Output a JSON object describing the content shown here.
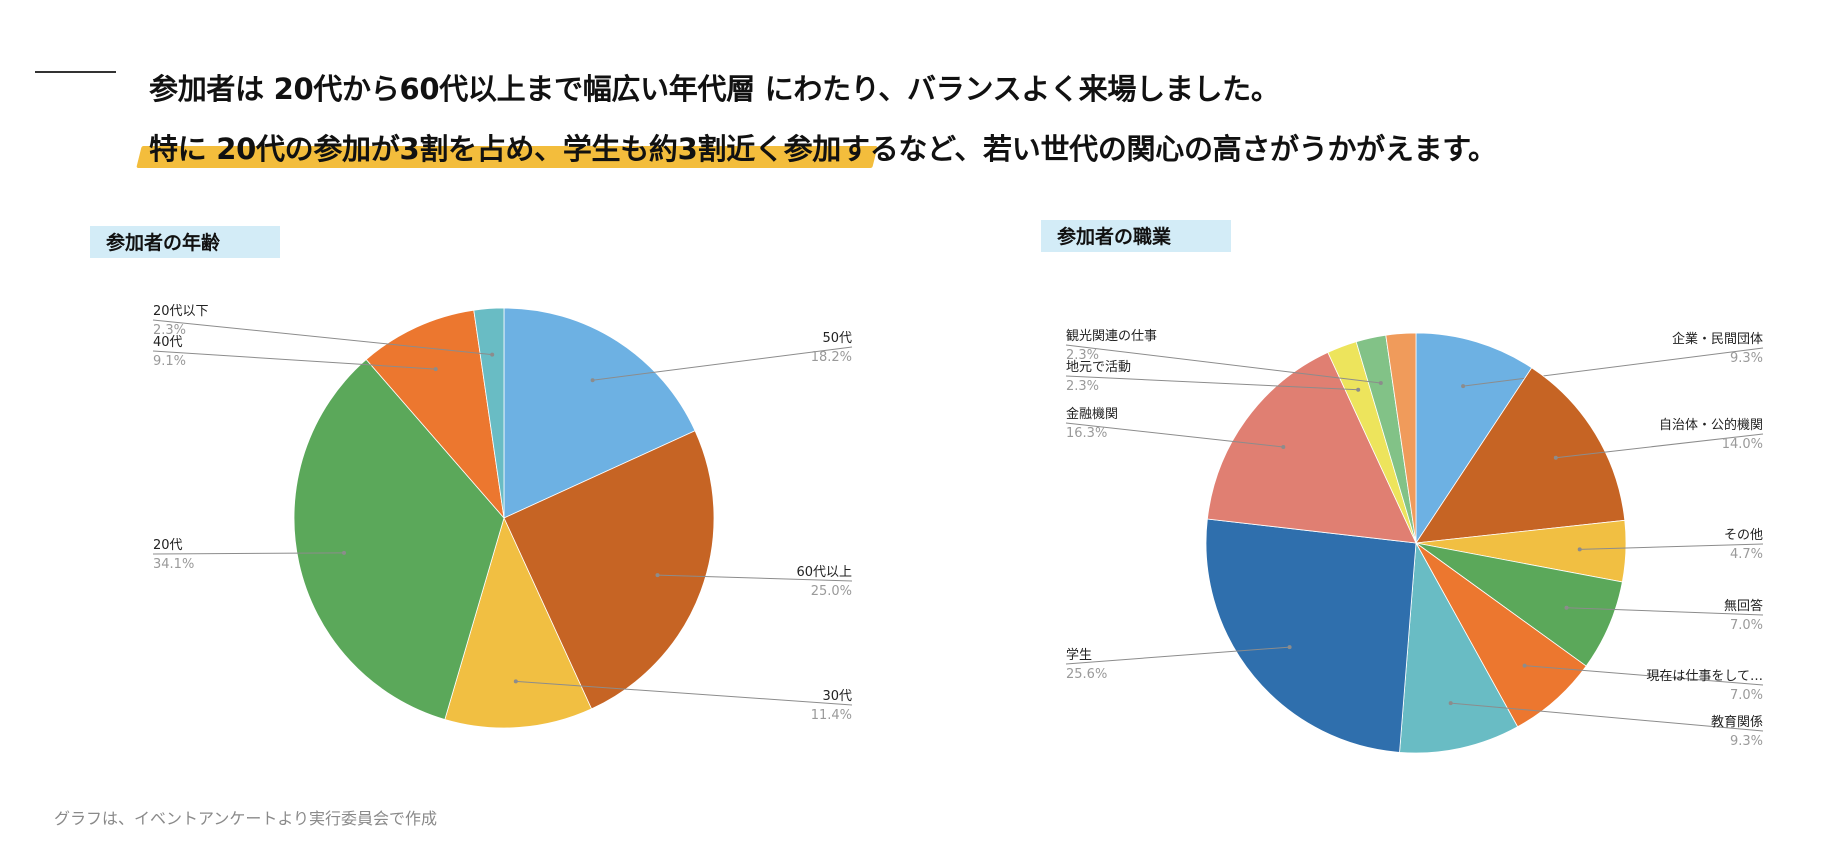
{
  "headline": {
    "line1": "参加者は 20代から60代以上まで幅広い年代層 にわたり、バランスよく来場しました。",
    "line2": "特に 20代の参加が3割を占め、学生も約3割近く参加するなど、若い世代の関心の高さがうかがえます。"
  },
  "footnote": "グラフは、イベントアンケートより実行委員会で作成",
  "chart_data": [
    {
      "type": "pie",
      "title": "参加者の年齢",
      "legend_position": "outside labels",
      "slices": [
        {
          "label": "50代",
          "value": 18.2,
          "pct_label": "18.2%",
          "color": "#6db1e3"
        },
        {
          "label": "60代以上",
          "value": 25.0,
          "pct_label": "25.0%",
          "color": "#c66424"
        },
        {
          "label": "30代",
          "value": 11.4,
          "pct_label": "11.4%",
          "color": "#f1bf42"
        },
        {
          "label": "20代",
          "value": 34.1,
          "pct_label": "34.1%",
          "color": "#5ba85a"
        },
        {
          "label": "40代",
          "value": 9.1,
          "pct_label": "9.1%",
          "color": "#ec772f"
        },
        {
          "label": "20代以下",
          "value": 2.3,
          "pct_label": "2.3%",
          "color": "#69bcc4"
        }
      ]
    },
    {
      "type": "pie",
      "title": "参加者の職業",
      "legend_position": "outside labels",
      "slices": [
        {
          "label": "企業・民間団体",
          "value": 9.3,
          "pct_label": "9.3%",
          "color": "#6db1e3"
        },
        {
          "label": "自治体・公的機関",
          "value": 14.0,
          "pct_label": "14.0%",
          "color": "#c66424"
        },
        {
          "label": "その他",
          "value": 4.7,
          "pct_label": "4.7%",
          "color": "#f1bf42"
        },
        {
          "label": "無回答",
          "value": 7.0,
          "pct_label": "7.0%",
          "color": "#5ba85a"
        },
        {
          "label": "現在は仕事をして…",
          "value": 7.0,
          "pct_label": "7.0%",
          "color": "#ec772f"
        },
        {
          "label": "教育関係",
          "value": 9.3,
          "pct_label": "9.3%",
          "color": "#69bcc4"
        },
        {
          "label": "学生",
          "value": 25.6,
          "pct_label": "25.6%",
          "color": "#2f6fad"
        },
        {
          "label": "金融機関",
          "value": 16.3,
          "pct_label": "16.3%",
          "color": "#e07f72"
        },
        {
          "label": "地元で活動",
          "value": 2.3,
          "pct_label": "2.3%",
          "color": "#ede45c"
        },
        {
          "label": "観光関連の仕事",
          "value": 2.3,
          "pct_label": "2.3%",
          "color": "#82c287"
        },
        {
          "label": "",
          "value": 2.3,
          "pct_label": "",
          "color": "#f09b5b"
        }
      ]
    }
  ]
}
